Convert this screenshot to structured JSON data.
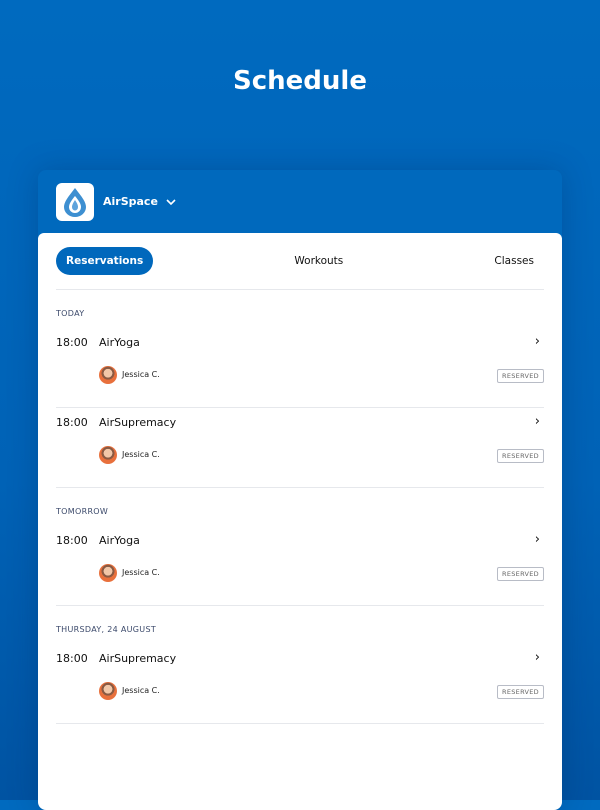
{
  "title": "Schedule",
  "header": {
    "brand": "AirSpace",
    "logo_icon": "water-drop-icon"
  },
  "tabs": [
    {
      "label": "Reservations",
      "active": true
    },
    {
      "label": "Workouts"
    },
    {
      "label": "Classes"
    }
  ],
  "sections": [
    {
      "label": "TODAY",
      "items": [
        {
          "time": "18:00",
          "name": "AirYoga",
          "person": "Jessica C.",
          "status": "RESERVED"
        },
        {
          "time": "18:00",
          "name": "AirSupremacy",
          "person": "Jessica C.",
          "status": "RESERVED"
        }
      ]
    },
    {
      "label": "TOMORROW",
      "items": [
        {
          "time": "18:00",
          "name": "AirYoga",
          "person": "Jessica C.",
          "status": "RESERVED"
        }
      ]
    },
    {
      "label": "THURSDAY, 24 AUGUST",
      "items": [
        {
          "time": "18:00",
          "name": "AirSupremacy",
          "person": "Jessica C.",
          "status": "RESERVED"
        }
      ]
    }
  ]
}
